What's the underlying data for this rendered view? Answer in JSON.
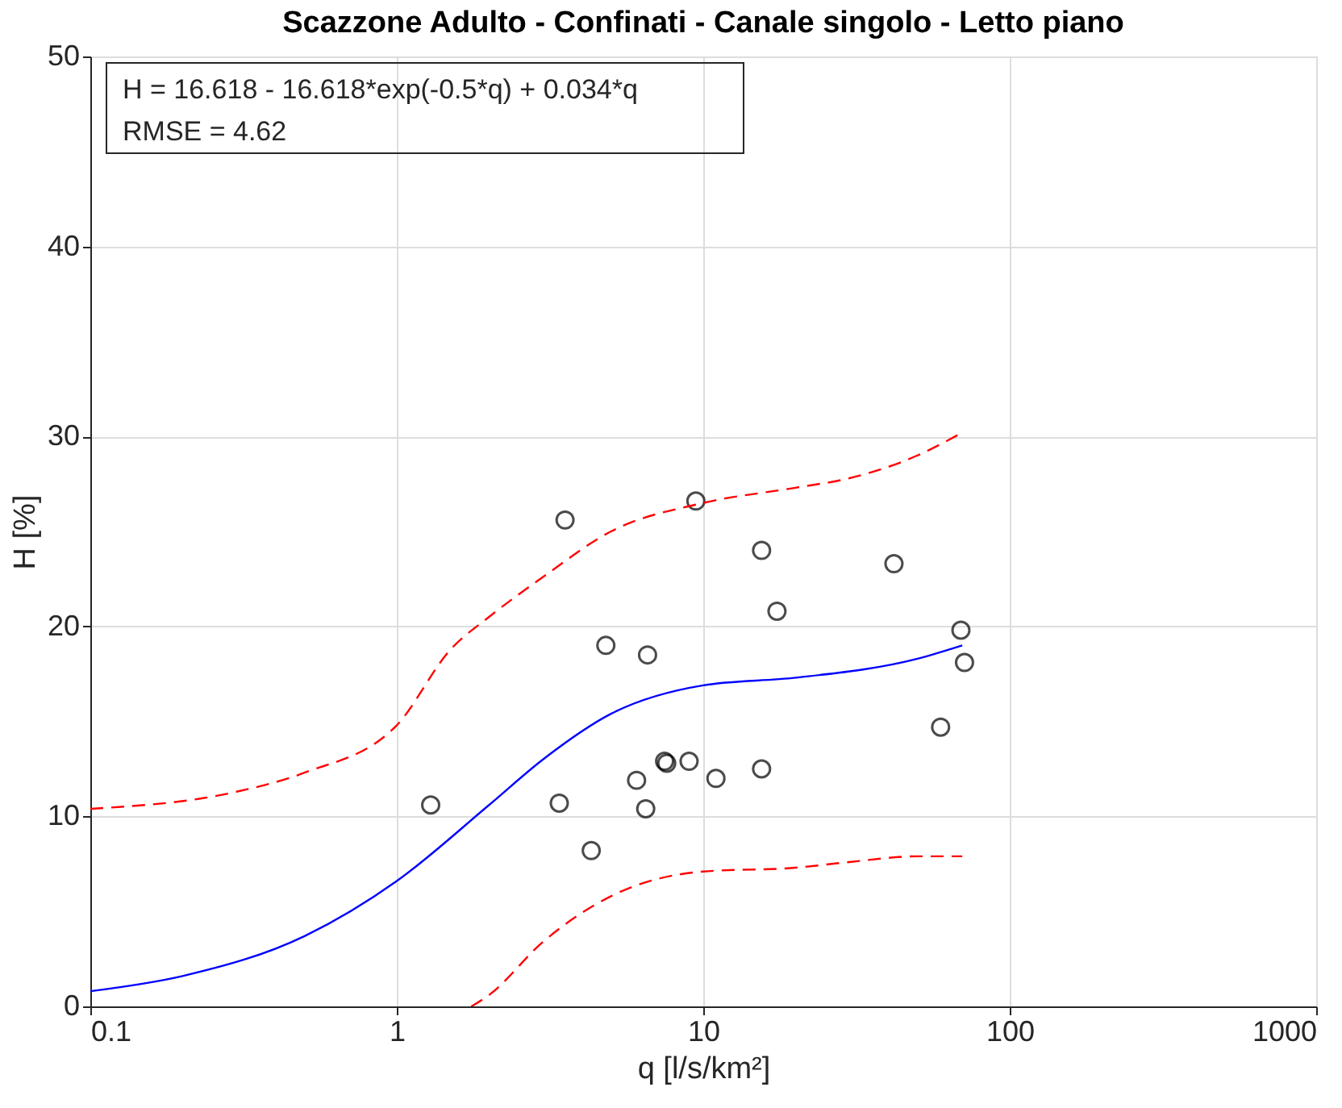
{
  "chart_data": {
    "type": "scatter",
    "title": "Scazzone Adulto - Confinati - Canale singolo - Letto piano",
    "xlabel": "q [l/s/km²]",
    "ylabel": "H [%]",
    "annotations": [
      "H = 16.618 - 16.618*exp(-0.5*q) + 0.034*q",
      "RMSE = 4.62"
    ],
    "log": "x",
    "xlim": [
      0.1,
      1000
    ],
    "xticks": [
      0.1,
      1,
      10,
      100,
      1000
    ],
    "ylim": [
      0,
      50
    ],
    "yticks": [
      0,
      10,
      20,
      30,
      40,
      50
    ],
    "grid": true,
    "series": [
      {
        "color": "#000000",
        "marker": "circle",
        "x": [
          1.29,
          3.54,
          3.39,
          4.31,
          4.81,
          6.58,
          6.06,
          6.49,
          7.48,
          7.6,
          8.99,
          9.46,
          11.0,
          15.5,
          15.5,
          17.4,
          41.9,
          59.5,
          69.3,
          71.2
        ],
        "values": [
          10.6,
          25.6,
          10.7,
          8.2,
          19.0,
          18.5,
          11.9,
          10.4,
          12.9,
          12.8,
          12.9,
          26.6,
          12.0,
          24.0,
          12.5,
          20.8,
          23.3,
          14.7,
          19.8,
          18.1
        ]
      },
      {
        "type": "line",
        "color": "#0000ff",
        "line_style": "solid",
        "x": [
          0.1,
          0.2,
          0.5,
          1,
          2,
          3,
          5,
          10,
          20,
          50,
          70
        ],
        "values": [
          0.8,
          1.6,
          3.7,
          6.6,
          10.6,
          13.0,
          15.4,
          16.9,
          17.3,
          18.3,
          19.0
        ]
      },
      {
        "type": "line",
        "color": "#ff0000",
        "line_style": "dashed",
        "x": [
          0.1,
          0.3,
          0.5,
          1,
          1.5,
          2,
          3,
          5,
          10,
          20,
          30,
          50,
          70
        ],
        "values": [
          10.4,
          11.3,
          12.3,
          14.8,
          18.8,
          20.5,
          22.6,
          25.0,
          26.5,
          27.3,
          27.8,
          29.0,
          30.2
        ]
      },
      {
        "type": "line",
        "color": "#ff0000",
        "line_style": "dashed",
        "x": [
          1.75,
          2,
          3,
          5,
          10,
          20,
          30,
          50,
          70
        ],
        "values": [
          0,
          0.6,
          3.4,
          5.8,
          7.1,
          7.3,
          7.6,
          7.9,
          7.9
        ]
      }
    ]
  }
}
